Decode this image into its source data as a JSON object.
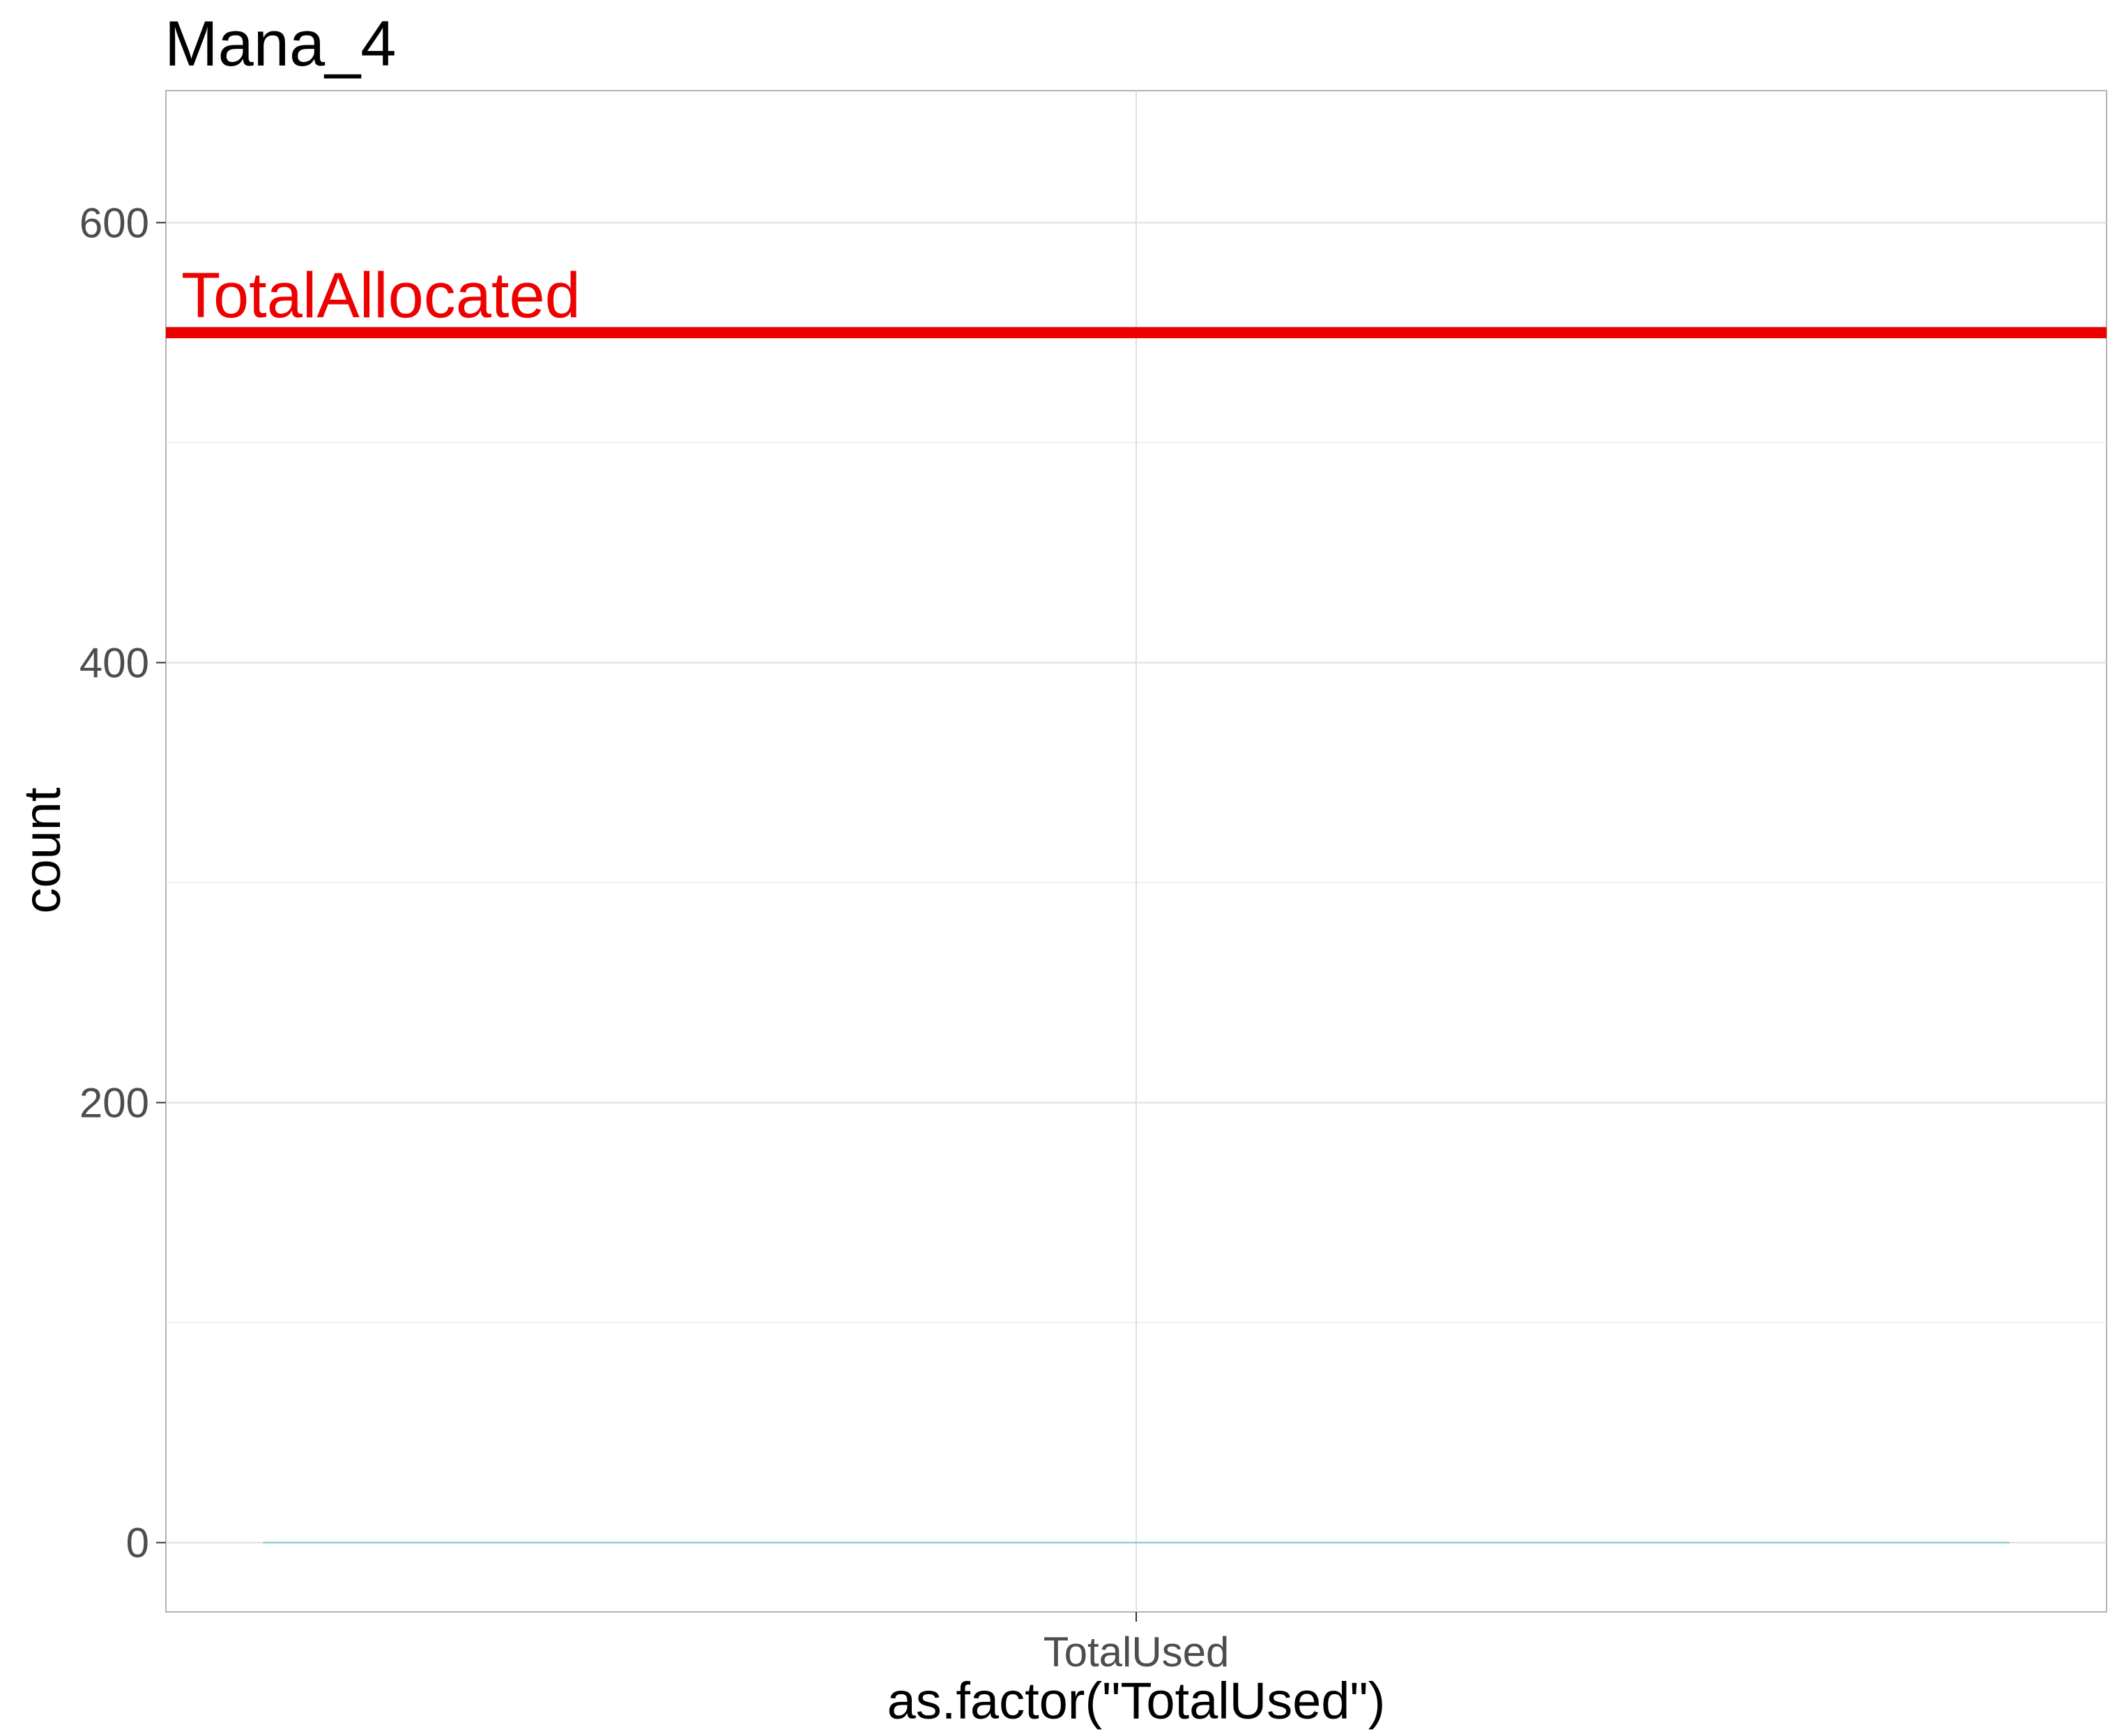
{
  "chart_data": {
    "type": "bar",
    "title": "Mana_4",
    "xlabel": "as.factor(\"TotalUsed\")",
    "ylabel": "count",
    "categories": [
      "TotalUsed"
    ],
    "values": [
      0
    ],
    "ylim": [
      -31.5,
      660
    ],
    "y_ticks": [
      0,
      200,
      400,
      600
    ],
    "y_tick_labels": [
      "0",
      "200",
      "400",
      "600"
    ],
    "grid": true,
    "bar_color": "#7fbfcf",
    "reference_line": {
      "y": 550,
      "label": "TotalAllocated",
      "color": "#ee0000"
    }
  }
}
